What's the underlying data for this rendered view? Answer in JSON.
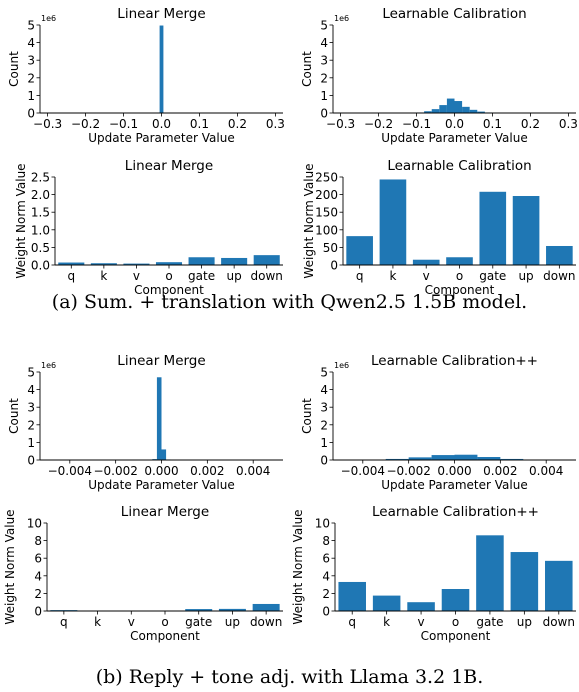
{
  "captions": {
    "a": "(a) Sum. + translation with Qwen2.5 1.5B model.",
    "b": "(b) Reply + tone adj. with Llama 3.2 1B."
  },
  "colors": {
    "bar": "#1f77b4",
    "axis": "#000000"
  },
  "chart_data": [
    {
      "id": "a_hist_linear",
      "type": "bar",
      "title": "Linear Merge",
      "xlabel": "Update Parameter Value",
      "ylabel": "Count",
      "offset_text": "1e6",
      "xlim": [
        -0.32,
        0.32
      ],
      "ylim": [
        0,
        5
      ],
      "xticks": [
        -0.3,
        -0.2,
        -0.1,
        0.0,
        0.1,
        0.2,
        0.3
      ],
      "xtick_labels": [
        "−0.3",
        "−0.2",
        "−0.1",
        "0.0",
        "0.1",
        "0.2",
        "0.3"
      ],
      "yticks": [
        0,
        1,
        2,
        3,
        4,
        5
      ],
      "ytick_labels": [
        "0",
        "1",
        "2",
        "3",
        "4",
        "5"
      ],
      "bins": {
        "centers": [
          0.0
        ],
        "width": 0.01,
        "values": [
          4.97
        ]
      }
    },
    {
      "id": "a_hist_learnable",
      "type": "bar",
      "title": "Learnable Calibration",
      "xlabel": "Update Parameter Value",
      "ylabel": "Count",
      "offset_text": "1e6",
      "xlim": [
        -0.32,
        0.32
      ],
      "ylim": [
        0,
        5
      ],
      "xticks": [
        -0.3,
        -0.2,
        -0.1,
        0.0,
        0.1,
        0.2,
        0.3
      ],
      "xtick_labels": [
        "−0.3",
        "−0.2",
        "−0.1",
        "0.0",
        "0.1",
        "0.2",
        "0.3"
      ],
      "yticks": [
        0,
        1,
        2,
        3,
        4,
        5
      ],
      "ytick_labels": [
        "0",
        "1",
        "2",
        "3",
        "4",
        "5"
      ],
      "bins": {
        "centers": [
          -0.11,
          -0.09,
          -0.07,
          -0.05,
          -0.03,
          -0.01,
          0.01,
          0.03,
          0.05,
          0.07,
          0.09,
          0.11
        ],
        "width": 0.02,
        "values": [
          0.01,
          0.03,
          0.1,
          0.22,
          0.45,
          0.82,
          0.68,
          0.35,
          0.18,
          0.08,
          0.03,
          0.01
        ]
      }
    },
    {
      "id": "a_norm_linear",
      "type": "bar",
      "title": "Linear Merge",
      "xlabel": "Component",
      "ylabel": "Weight Norm Value",
      "categories": [
        "q",
        "k",
        "v",
        "o",
        "gate",
        "up",
        "down"
      ],
      "values": [
        0.07,
        0.05,
        0.04,
        0.08,
        0.22,
        0.2,
        0.28
      ],
      "ylim": [
        0,
        2.5
      ],
      "yticks": [
        0,
        0.5,
        1.0,
        1.5,
        2.0,
        2.5
      ],
      "ytick_labels": [
        "0.0",
        "0.5",
        "1.0",
        "1.5",
        "2.0",
        "2.5"
      ]
    },
    {
      "id": "a_norm_learnable",
      "type": "bar",
      "title": "Learnable Calibration",
      "xlabel": "Component",
      "ylabel": "Weight Norm Value",
      "categories": [
        "q",
        "k",
        "v",
        "o",
        "gate",
        "up",
        "down"
      ],
      "values": [
        82,
        243,
        15,
        22,
        208,
        196,
        54
      ],
      "ylim": [
        0,
        250
      ],
      "yticks": [
        0,
        50,
        100,
        150,
        200,
        250
      ],
      "ytick_labels": [
        "0",
        "50",
        "100",
        "150",
        "200",
        "250"
      ]
    },
    {
      "id": "b_hist_linear",
      "type": "bar",
      "title": "Linear Merge",
      "xlabel": "Update Parameter Value",
      "ylabel": "Count",
      "offset_text": "1e6",
      "xlim": [
        -0.0053,
        0.0053
      ],
      "ylim": [
        0,
        5
      ],
      "xticks": [
        -0.004,
        -0.002,
        0.0,
        0.002,
        0.004
      ],
      "xtick_labels": [
        "−0.004",
        "−0.002",
        "0.000",
        "0.002",
        "0.004"
      ],
      "yticks": [
        0,
        1,
        2,
        3,
        4,
        5
      ],
      "ytick_labels": [
        "0",
        "1",
        "2",
        "3",
        "4",
        "5"
      ],
      "bins": {
        "centers": [
          -0.0003,
          -0.0001,
          0.0001,
          0.0003
        ],
        "width": 0.0002,
        "values": [
          0.05,
          4.7,
          0.6,
          0.03
        ]
      }
    },
    {
      "id": "b_hist_learnable",
      "type": "bar",
      "title": "Learnable Calibration++",
      "xlabel": "Update Parameter Value",
      "ylabel": "Count",
      "offset_text": "1e6",
      "xlim": [
        -0.0053,
        0.0053
      ],
      "ylim": [
        0,
        5
      ],
      "xticks": [
        -0.004,
        -0.002,
        0.0,
        0.002,
        0.004
      ],
      "xtick_labels": [
        "−0.004",
        "−0.002",
        "0.000",
        "0.002",
        "0.004"
      ],
      "yticks": [
        0,
        1,
        2,
        3,
        4,
        5
      ],
      "ytick_labels": [
        "0",
        "1",
        "2",
        "3",
        "4",
        "5"
      ],
      "bins": {
        "centers": [
          -0.0035,
          -0.0025,
          -0.0015,
          -0.0005,
          0.0005,
          0.0015,
          0.0025,
          0.0035
        ],
        "width": 0.001,
        "values": [
          0.02,
          0.06,
          0.15,
          0.28,
          0.3,
          0.17,
          0.06,
          0.02
        ]
      }
    },
    {
      "id": "b_norm_linear",
      "type": "bar",
      "title": "Linear Merge",
      "xlabel": "Component",
      "ylabel": "Weight Norm Value",
      "categories": [
        "q",
        "k",
        "v",
        "o",
        "gate",
        "up",
        "down"
      ],
      "values": [
        0.1,
        0.04,
        0.03,
        0.05,
        0.22,
        0.24,
        0.8
      ],
      "ylim": [
        0,
        10
      ],
      "yticks": [
        0,
        2,
        4,
        6,
        8,
        10
      ],
      "ytick_labels": [
        "0",
        "2",
        "4",
        "6",
        "8",
        "10"
      ]
    },
    {
      "id": "b_norm_learnable",
      "type": "bar",
      "title": "Learnable Calibration++",
      "xlabel": "Component",
      "ylabel": "Weight Norm Value",
      "categories": [
        "q",
        "k",
        "v",
        "o",
        "gate",
        "up",
        "down"
      ],
      "values": [
        3.3,
        1.75,
        1.0,
        2.5,
        8.6,
        6.7,
        5.7
      ],
      "ylim": [
        0,
        10
      ],
      "yticks": [
        0,
        2,
        4,
        6,
        8,
        10
      ],
      "ytick_labels": [
        "0",
        "2",
        "4",
        "6",
        "8",
        "10"
      ]
    }
  ]
}
